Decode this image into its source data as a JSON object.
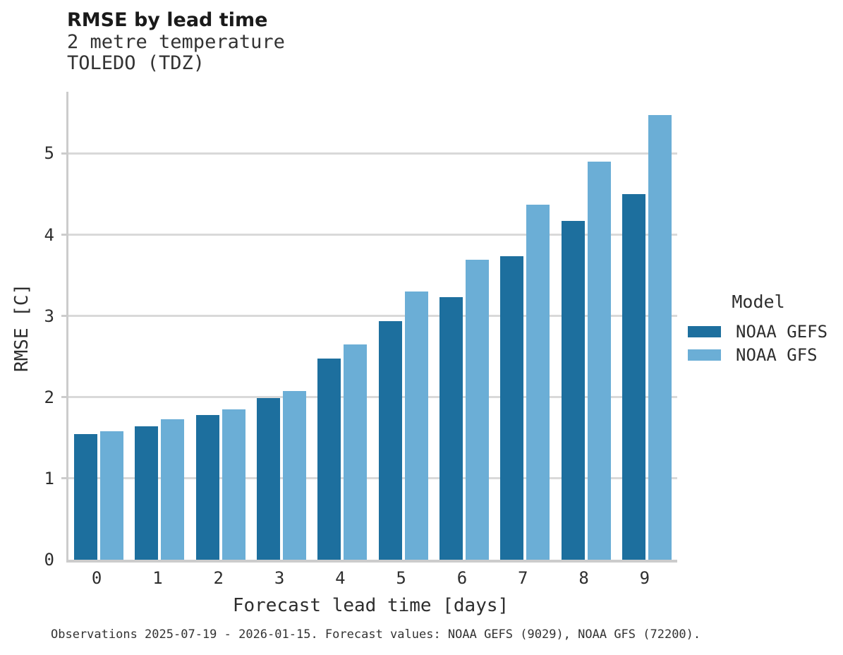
{
  "header": {
    "title": "RMSE by lead time",
    "subtitle_line1": "2 metre temperature",
    "subtitle_line2": "TOLEDO (TDZ)"
  },
  "legend": {
    "title": "Model",
    "items": [
      {
        "label": "NOAA GEFS",
        "color": "#1d6f9e"
      },
      {
        "label": "NOAA GFS",
        "color": "#6baed6"
      }
    ]
  },
  "caption": "Observations 2025-07-19 - 2026-01-15. Forecast values: NOAA GEFS (9029), NOAA GFS (72200).",
  "chart_data": {
    "type": "bar",
    "title": "RMSE by lead time",
    "subtitle": [
      "2 metre temperature",
      "TOLEDO (TDZ)"
    ],
    "categories": [
      0,
      1,
      2,
      3,
      4,
      5,
      6,
      7,
      8,
      9
    ],
    "series": [
      {
        "name": "NOAA GEFS",
        "color": "#1d6f9e",
        "values": [
          1.55,
          1.64,
          1.78,
          1.99,
          2.48,
          2.94,
          3.23,
          3.74,
          4.17,
          4.5
        ]
      },
      {
        "name": "NOAA GFS",
        "color": "#6baed6",
        "values": [
          1.58,
          1.73,
          1.85,
          2.08,
          2.65,
          3.3,
          3.69,
          4.37,
          4.9,
          5.47
        ]
      }
    ],
    "xlabel": "Forecast lead time [days]",
    "ylabel": "RMSE [C]",
    "ylim": [
      0,
      5.76
    ],
    "yticks": [
      0,
      1,
      2,
      3,
      4,
      5
    ],
    "grid": true,
    "legend_title": "Model",
    "legend_position": "right"
  }
}
